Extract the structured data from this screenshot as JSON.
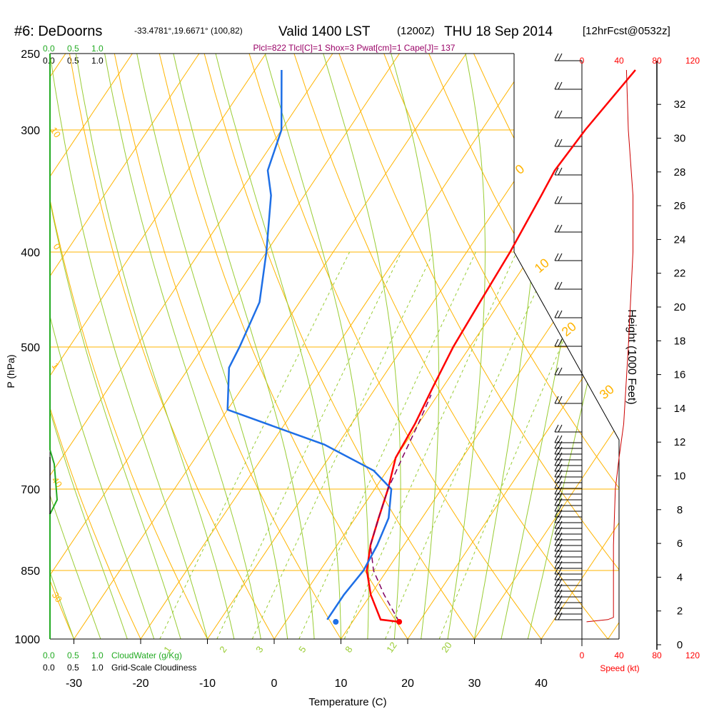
{
  "header": {
    "station": "#6: DeDoorns",
    "coords": "-33.4781°,19.6671° (100,82)",
    "valid": "Valid 1400 LST",
    "utc": "(1200Z)",
    "date": "THU 18 Sep 2014",
    "forecast": "[12hrFcst@0532z]"
  },
  "indices": "Plcl=822 Tlcl[C]=1 Shox=3 Pwat[cm]=1 Cape[J]= 137",
  "colors": {
    "temperature": "#ff0000",
    "dewpoint": "#1e6fe6",
    "parcel": "#800060",
    "isotherm": "#ffb400",
    "dry_adiabat": "#ffb400",
    "moist_adiabat": "#99cc33",
    "mixing_ratio": "#99cc33",
    "cloud": "#22aa22",
    "speed": "#cc0000",
    "indices": "#990066"
  },
  "cloud_scales": {
    "top_green": [
      "0.0",
      "0.5",
      "1.0"
    ],
    "top_black": [
      "0.0",
      "0.5",
      "1.0"
    ],
    "bottom_green": [
      "0.0",
      "0.5",
      "1.0"
    ],
    "bottom_green_label": "CloudWater (g/Kg)",
    "bottom_black": [
      "0.0",
      "0.5",
      "1.0"
    ],
    "bottom_black_label": "Grid-Scale Cloudiness"
  },
  "speed_axis": {
    "ticks": [
      "0",
      "40",
      "80",
      "120"
    ],
    "label": "Speed (kt)"
  },
  "chart_data": {
    "type": "line",
    "title": "#6: DeDoorns  Valid 1400 LST (1200Z) THU 18 Sep 2014",
    "xlabel": "Temperature (C)",
    "ylabel": "P (hPa)",
    "y2label": "Height (1000 Feet)",
    "x_ticks": [
      "-30",
      "-20",
      "-10",
      "0",
      "10",
      "20",
      "30",
      "40"
    ],
    "pressure_ticks": [
      "250",
      "300",
      "400",
      "500",
      "700",
      "850",
      "1000"
    ],
    "height_ticks": [
      "0",
      "2",
      "4",
      "6",
      "8",
      "10",
      "12",
      "14",
      "16",
      "18",
      "20",
      "22",
      "24",
      "26",
      "28",
      "30",
      "32"
    ],
    "xlim": [
      -34,
      46
    ],
    "ylim_hpa": [
      1000,
      250
    ],
    "isotherm_labels": [
      "10",
      "0",
      "-10",
      "-20",
      "-30",
      "-40",
      "0",
      "10",
      "20",
      "30"
    ],
    "mixing_ratio_labels": [
      "1",
      "2",
      "3",
      "5",
      "8",
      "12",
      "20"
    ],
    "series": [
      {
        "name": "Temperature",
        "points": [
          [
            17,
            960
          ],
          [
            14,
            955
          ],
          [
            10,
            900
          ],
          [
            7,
            850
          ],
          [
            5,
            800
          ],
          [
            3.5,
            750
          ],
          [
            2,
            700
          ],
          [
            0,
            650
          ],
          [
            -0.5,
            600
          ],
          [
            -1.5,
            550
          ],
          [
            -2.5,
            500
          ],
          [
            -3,
            450
          ],
          [
            -3.5,
            400
          ],
          [
            -4.5,
            350
          ],
          [
            -5,
            330
          ],
          [
            -4.5,
            300
          ],
          [
            -3,
            260
          ]
        ]
      },
      {
        "name": "Dewpoint",
        "points": [
          [
            6,
            955
          ],
          [
            6,
            900
          ],
          [
            6.5,
            850
          ],
          [
            6,
            800
          ],
          [
            5,
            750
          ],
          [
            2.5,
            700
          ],
          [
            -2,
            670
          ],
          [
            -12,
            630
          ],
          [
            -30,
            580
          ],
          [
            -34,
            525
          ],
          [
            -34.5,
            500
          ],
          [
            -36,
            450
          ],
          [
            -40,
            400
          ],
          [
            -45,
            350
          ],
          [
            -48,
            330
          ],
          [
            -50,
            300
          ],
          [
            -56,
            260
          ]
        ]
      },
      {
        "name": "Parcel",
        "points": [
          [
            17,
            960
          ],
          [
            12,
            900
          ],
          [
            8,
            850
          ],
          [
            5,
            800
          ],
          [
            3.5,
            750
          ],
          [
            2,
            700
          ],
          [
            1,
            650
          ],
          [
            0,
            600
          ],
          [
            -1,
            560
          ]
        ]
      },
      {
        "name": "Speed",
        "points": [
          [
            5,
            960
          ],
          [
            28,
            955
          ],
          [
            34,
            950
          ],
          [
            34,
            800
          ],
          [
            36,
            700
          ],
          [
            40,
            650
          ],
          [
            45,
            600
          ],
          [
            50,
            500
          ],
          [
            55,
            400
          ],
          [
            55,
            350
          ],
          [
            50,
            300
          ],
          [
            48,
            260
          ]
        ]
      }
    ],
    "surface_temp": 17,
    "surface_dewpoint": 7.5,
    "surface_pressure": 960,
    "legend": "none"
  }
}
